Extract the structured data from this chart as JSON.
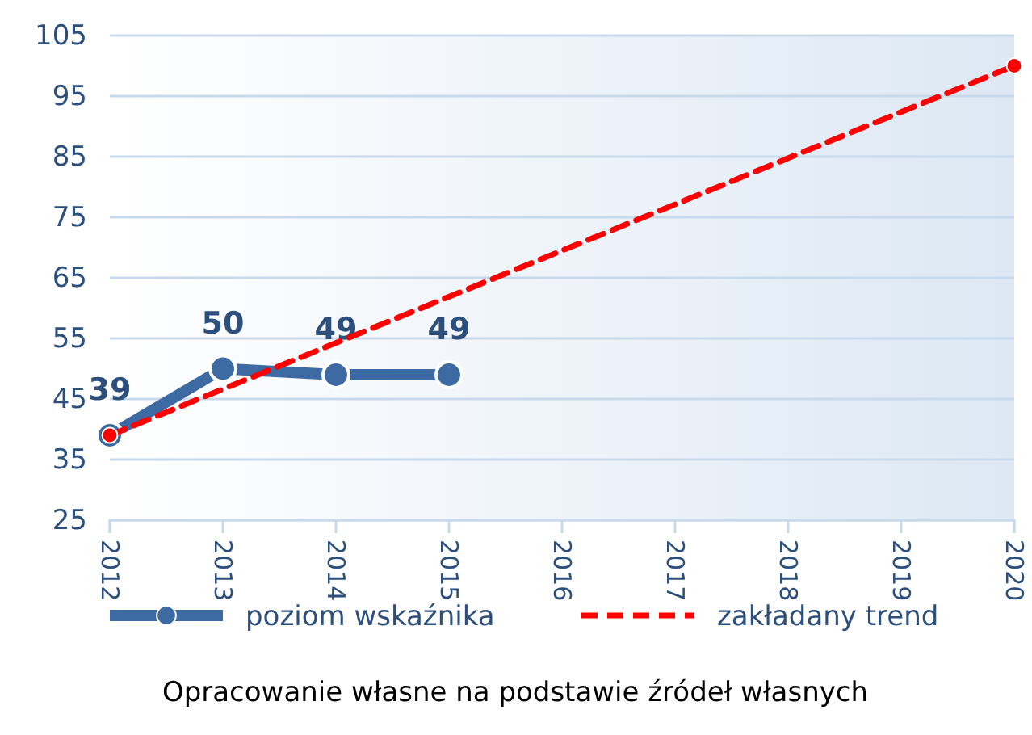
{
  "chart_data": {
    "type": "line",
    "xlim": [
      2012,
      2020
    ],
    "xticks": [
      2012,
      2013,
      2014,
      2015,
      2016,
      2017,
      2018,
      2019,
      2020
    ],
    "ylim": [
      25,
      105
    ],
    "yticks": [
      25,
      35,
      45,
      55,
      65,
      75,
      85,
      95,
      105
    ],
    "grid": "y",
    "legend": "bottom",
    "series": [
      {
        "name": "poziom wskaźnika",
        "color": "#3d6aa3",
        "x": [
          2012,
          2013,
          2014,
          2015
        ],
        "values": [
          39,
          50,
          49,
          49
        ],
        "value_labels": [
          "39",
          "50",
          "49",
          "49"
        ],
        "marker": "circle",
        "line_style": "solid"
      },
      {
        "name": "zakładany trend",
        "color": "#ff0000",
        "x": [
          2012,
          2020
        ],
        "values": [
          39,
          100
        ],
        "marker": "circle",
        "line_style": "dashed"
      }
    ],
    "annotations": [
      "Opracowanie własne na podstawie źródeł własnych"
    ]
  }
}
